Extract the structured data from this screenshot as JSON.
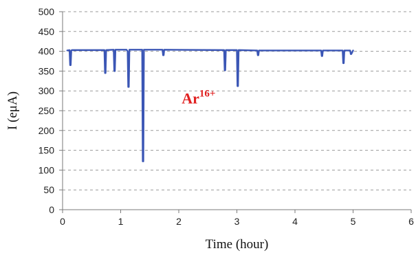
{
  "chart_data": {
    "type": "line",
    "title": "",
    "xlabel": "Time (hour)",
    "ylabel": "I (eμA)",
    "xlim": [
      0,
      6
    ],
    "ylim": [
      0,
      500
    ],
    "xticks": [
      0,
      1,
      2,
      3,
      4,
      5,
      6
    ],
    "yticks": [
      0,
      50,
      100,
      150,
      200,
      250,
      300,
      350,
      400,
      450,
      500
    ],
    "grid": {
      "y": true,
      "x": false,
      "style": "dashed"
    },
    "series": [
      {
        "color": "#3b56b5",
        "x": [
          0.08,
          0.12,
          0.13,
          0.14,
          0.15,
          0.16,
          0.2,
          0.72,
          0.73,
          0.74,
          0.75,
          0.88,
          0.89,
          0.9,
          0.91,
          1.1,
          1.12,
          1.13,
          1.14,
          1.15,
          1.37,
          1.38,
          1.39,
          1.4,
          1.41,
          1.72,
          1.73,
          1.74,
          1.75,
          2.78,
          2.79,
          2.8,
          2.81,
          2.82,
          3.0,
          3.01,
          3.02,
          3.03,
          3.04,
          3.35,
          3.36,
          3.37,
          3.38,
          4.45,
          4.46,
          4.47,
          4.48,
          4.82,
          4.83,
          4.84,
          4.85,
          4.95,
          4.96,
          4.97,
          5.0
        ],
        "y": [
          402,
          403,
          365,
          365,
          402,
          403,
          403,
          403,
          345,
          345,
          403,
          404,
          350,
          350,
          404,
          404,
          400,
          310,
          310,
          404,
          404,
          122,
          122,
          404,
          404,
          404,
          390,
          390,
          404,
          403,
          352,
          352,
          403,
          403,
          403,
          312,
          312,
          403,
          403,
          402,
          390,
          390,
          402,
          402,
          388,
          388,
          402,
          402,
          370,
          370,
          402,
          402,
          393,
          393,
          402
        ]
      }
    ],
    "annotations": [
      {
        "base": "Ar",
        "sup": "16+",
        "color": "#e02020",
        "x": 2.05,
        "y": 268
      }
    ]
  }
}
